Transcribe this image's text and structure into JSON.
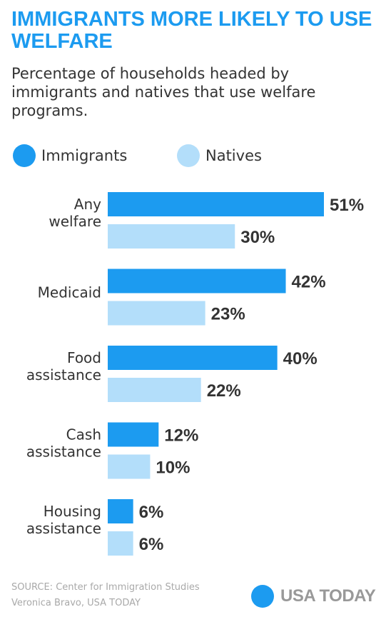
{
  "header": {
    "title": "IMMIGRANTS MORE LIKELY TO USE WELFARE",
    "subtitle": "Percentage of households headed by immigrants and natives that use welfare programs."
  },
  "legend": {
    "immigrants_label": "Immigrants",
    "natives_label": "Natives"
  },
  "colors": {
    "immigrants": "#1c9bf0",
    "natives": "#b3defa",
    "title": "#1c9bf0",
    "brand_dot": "#1c9bf0",
    "text": "#333333",
    "footer": "#a9a9a9"
  },
  "chart_data": {
    "type": "bar",
    "orientation": "horizontal",
    "title": "IMMIGRANTS MORE LIKELY TO USE WELFARE",
    "subtitle": "Percentage of households headed by immigrants and natives that use welfare programs.",
    "categories": [
      [
        "Any",
        "welfare"
      ],
      [
        "Medicaid"
      ],
      [
        "Food",
        "assistance"
      ],
      [
        "Cash",
        "assistance"
      ],
      [
        "Housing",
        "assistance"
      ]
    ],
    "series": [
      {
        "name": "Immigrants",
        "values": [
          51,
          42,
          40,
          12,
          6
        ],
        "labels": [
          "51%",
          "42%",
          "40%",
          "12%",
          "6%"
        ]
      },
      {
        "name": "Natives",
        "values": [
          30,
          23,
          22,
          10,
          6
        ],
        "labels": [
          "30%",
          "23%",
          "22%",
          "10%",
          "6%"
        ]
      }
    ],
    "unit": "%",
    "xlim": [
      0,
      51
    ],
    "grid": false,
    "legend": "top-left"
  },
  "footer": {
    "source": "SOURCE:  Center for Immigration Studies",
    "credit": "Veronica Bravo, USA TODAY",
    "brand": "USA TODAY"
  }
}
